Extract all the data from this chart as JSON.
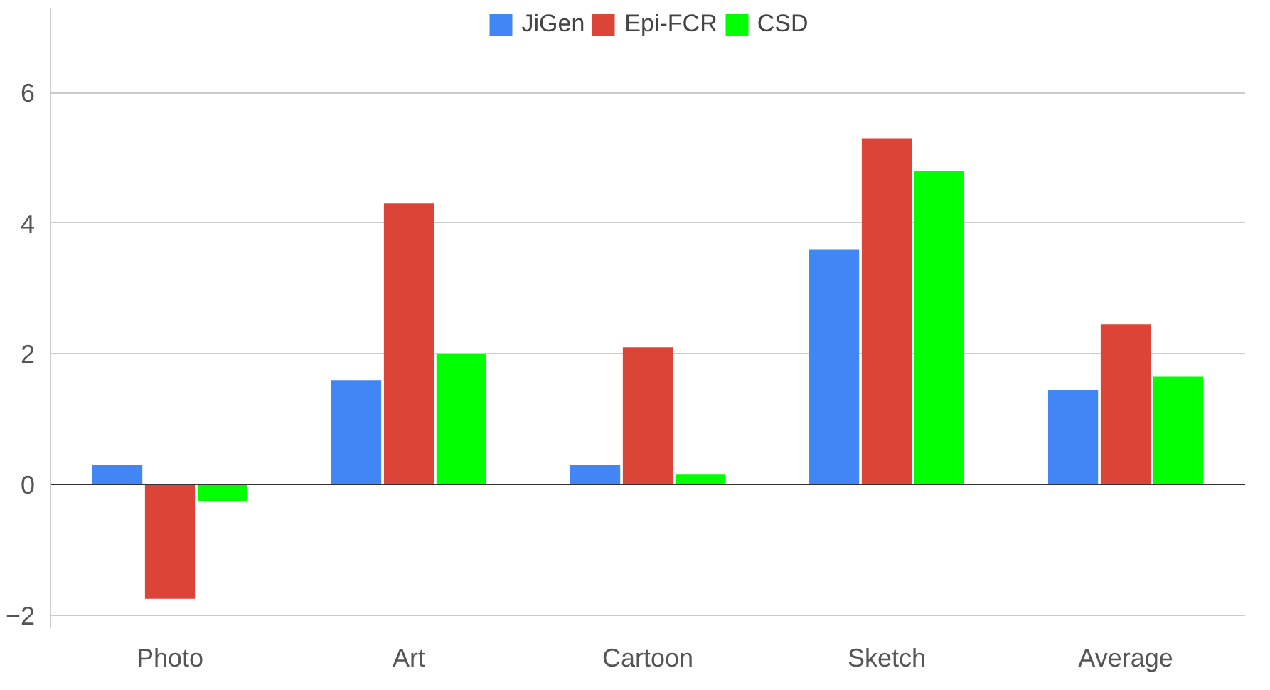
{
  "chart_data": {
    "type": "bar",
    "categories": [
      "Photo",
      "Art",
      "Cartoon",
      "Sketch",
      "Average"
    ],
    "series": [
      {
        "name": "JiGen",
        "color": "#4285f4",
        "values": [
          0.3,
          1.6,
          0.3,
          3.6,
          1.45
        ]
      },
      {
        "name": "Epi-FCR",
        "color": "#db4437",
        "values": [
          -1.75,
          4.3,
          2.1,
          5.3,
          2.45
        ]
      },
      {
        "name": "CSD",
        "color": "#00ff00",
        "values": [
          -0.25,
          2.0,
          0.15,
          4.8,
          1.65
        ]
      }
    ],
    "ylim": [
      -2.2,
      7.3
    ],
    "yticks": [
      -2,
      0,
      2,
      4,
      6
    ],
    "grid": "y",
    "legend": "top"
  }
}
